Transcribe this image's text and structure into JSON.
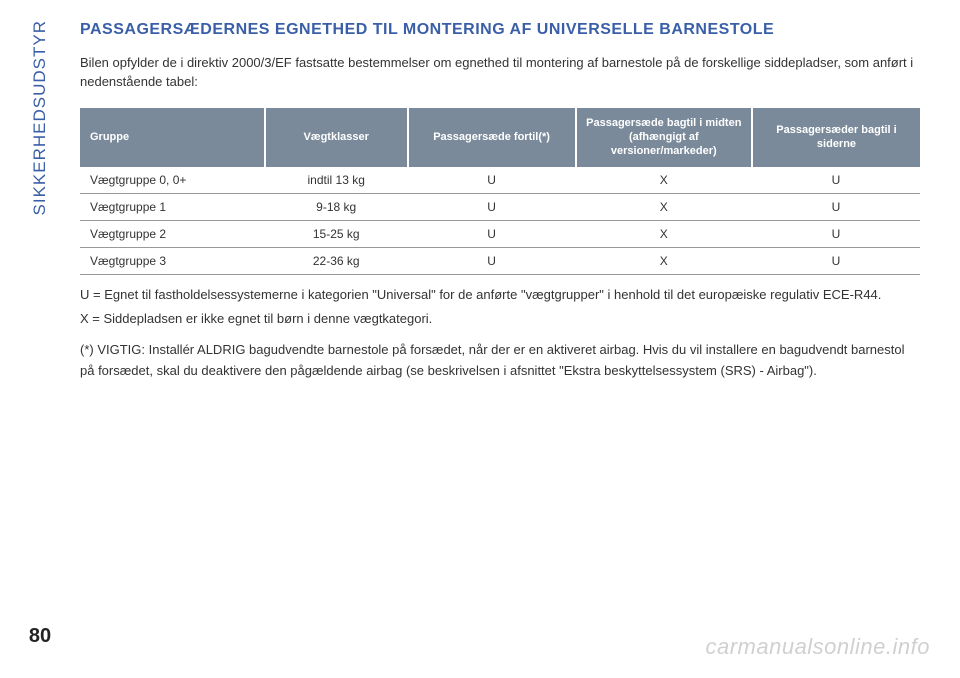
{
  "page": {
    "side_label": "SIKKERHEDSUDSTYR",
    "number": "80"
  },
  "title": "PASSAGERSÆDERNES EGNETHED TIL MONTERING AF UNIVERSELLE BARNESTOLE",
  "intro": "Bilen opfylder de i direktiv 2000/3/EF fastsatte bestemmelser om egnethed til montering af barnestole på de forskellige siddepladser, som anført i nedenstående tabel:",
  "table": {
    "columns": [
      "Gruppe",
      "Vægtklasser",
      "Passagersæde fortil(*)",
      "Passagersæde bagtil i midten (afhængigt af versioner/markeder)",
      "Passagersæder bagtil i siderne"
    ],
    "column_widths": [
      "22%",
      "17%",
      "20%",
      "21%",
      "20%"
    ],
    "rows": [
      [
        "Vægtgruppe 0, 0+",
        "indtil 13 kg",
        "U",
        "X",
        "U"
      ],
      [
        "Vægtgruppe 1",
        "9-18 kg",
        "U",
        "X",
        "U"
      ],
      [
        "Vægtgruppe 2",
        "15-25 kg",
        "U",
        "X",
        "U"
      ],
      [
        "Vægtgruppe 3",
        "22-36 kg",
        "U",
        "X",
        "U"
      ]
    ],
    "header_bg": "#7a8a9a",
    "header_color": "#ffffff",
    "border_color": "#999999"
  },
  "legend": {
    "u": "U = Egnet til fastholdelsessystemerne i kategorien \"Universal\" for de anførte \"vægtgrupper\" i henhold til det europæiske regulativ ECE-R44.",
    "x": "X = Siddepladsen er ikke egnet til børn i denne vægtkategori."
  },
  "footnote": "(*)  VIGTIG: Installér ALDRIG bagudvendte barnestole på forsædet, når der er en aktiveret airbag. Hvis du vil installere en bagudvendt barnestol på forsædet, skal du deaktivere den pågældende airbag (se beskrivelsen i afsnittet \"Ekstra beskyttelsessystem (SRS) - Airbag\").",
  "watermark": "carmanualsonline.info",
  "colors": {
    "brand_blue": "#3a5fa8",
    "text": "#333333",
    "header_bg": "#7a8a9a"
  }
}
